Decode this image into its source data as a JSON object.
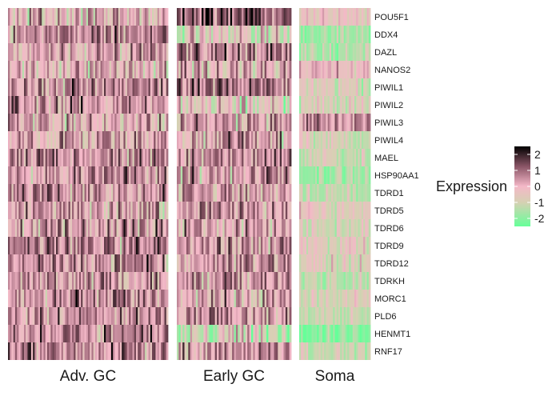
{
  "chart_data": {
    "type": "heatmap",
    "genes": [
      "POU5F1",
      "DDX4",
      "DAZL",
      "NANOS2",
      "PIWIL1",
      "PIWIL2",
      "PIWIL3",
      "PIWIL4",
      "MAEL",
      "HSP90AA1",
      "TDRD1",
      "TDRD5",
      "TDRD6",
      "TDRD9",
      "TDRD12",
      "TDRKH",
      "MORC1",
      "PLD6",
      "HENMT1",
      "RNF17"
    ],
    "groups": [
      {
        "name": "Adv. GC",
        "n_cells": 90,
        "gene_mean": [
          -0.1,
          0.7,
          0.2,
          0.0,
          0.4,
          0.6,
          0.0,
          0.2,
          0.6,
          0.5,
          0.6,
          0.3,
          0.4,
          0.6,
          0.6,
          0.4,
          0.4,
          0.4,
          0.6,
          0.6
        ]
      },
      {
        "name": "Early GC",
        "n_cells": 60,
        "gene_mean": [
          1.3,
          -0.6,
          0.7,
          0.0,
          0.7,
          -0.5,
          0.2,
          0.3,
          0.5,
          0.3,
          0.2,
          0.3,
          0.2,
          0.3,
          0.4,
          0.3,
          0.2,
          0.3,
          -0.8,
          0.3
        ]
      },
      {
        "name": "Soma",
        "n_cells": 40,
        "gene_mean": [
          -0.5,
          -1.7,
          -1.4,
          -0.1,
          -0.9,
          -0.8,
          0.5,
          -1.0,
          -1.1,
          -1.6,
          -1.2,
          -0.7,
          -1.0,
          -0.7,
          -0.8,
          -1.2,
          -0.8,
          -1.2,
          -2.0,
          -1.2
        ]
      }
    ],
    "value_range": [
      -2.5,
      2.5
    ],
    "legend": {
      "title": "Expression",
      "ticks": [
        2,
        1,
        0,
        -1,
        -2
      ],
      "colors": {
        "min": "#66ff99",
        "mid_low": "#d6d1b3",
        "mid": "#f4b8c8",
        "mid_high": "#8a5566",
        "max": "#000000"
      },
      "position": "right"
    }
  }
}
